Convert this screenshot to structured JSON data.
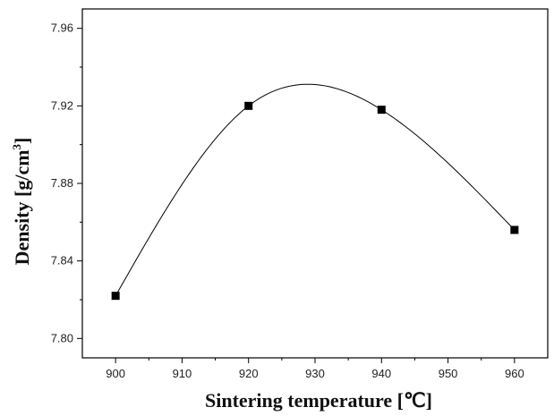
{
  "chart_data": {
    "type": "line",
    "title": "",
    "xlabel": "Sintering temperature [℃]",
    "ylabel": "Density [g/cm",
    "ylabel_superscript": "3",
    "ylabel_close": "]",
    "xlim": [
      895,
      965
    ],
    "ylim": [
      7.79,
      7.97
    ],
    "x_ticks": [
      900,
      910,
      920,
      930,
      940,
      950,
      960
    ],
    "x_tick_labels": [
      "900",
      "910",
      "920",
      "930",
      "940",
      "950",
      "960"
    ],
    "y_ticks": [
      7.8,
      7.84,
      7.88,
      7.92,
      7.96
    ],
    "y_tick_labels": [
      "7.80",
      "7.84",
      "7.88",
      "7.92",
      "7.96"
    ],
    "grid": false,
    "legend": "none",
    "series": [
      {
        "marker": "square",
        "line": "smooth",
        "color": "#000000",
        "x": [
          900,
          920,
          940,
          960
        ],
        "y": [
          7.822,
          7.92,
          7.918,
          7.856
        ]
      }
    ]
  }
}
